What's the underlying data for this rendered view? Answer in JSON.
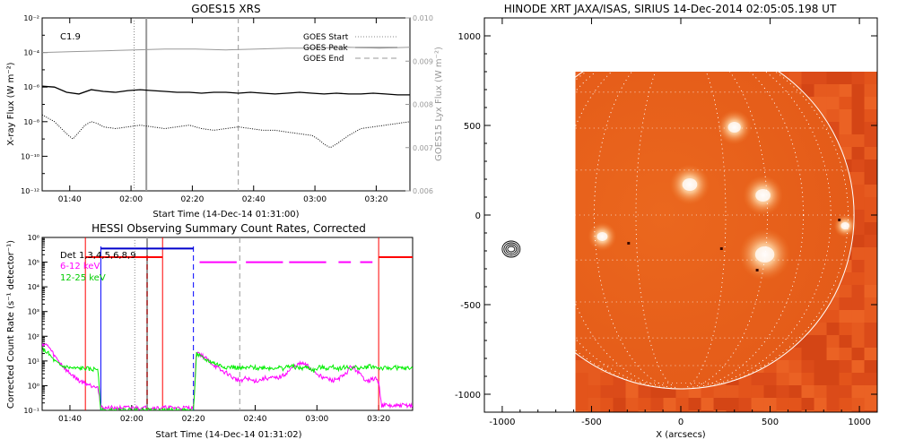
{
  "chart_data": [
    {
      "type": "line",
      "title": "GOES15 XRS",
      "xlabel": "Start Time (14-Dec-14 01:31:00)",
      "ylabel_left": "X-ray Flux (W m⁻²)",
      "ylabel_right": "GOES15 Lyx Flux (W m⁻²)",
      "annotation": "C1.9",
      "x_ticks": [
        "01:40",
        "02:00",
        "02:20",
        "02:40",
        "03:00",
        "03:20"
      ],
      "y_ticks_left": [
        "10⁻¹²",
        "10⁻¹⁰",
        "10⁻⁸",
        "10⁻⁶",
        "10⁻⁴",
        "10⁻²"
      ],
      "y_ticks_right": [
        "0.006",
        "0.007",
        "0.008",
        "0.009",
        "0.010"
      ],
      "legend": [
        "GOES Start",
        "GOES Peak",
        "GOES End"
      ],
      "legend_placement": "top-right",
      "xlim_minutes": [
        0,
        120
      ],
      "ylim_log10": [
        -12,
        -2
      ],
      "markers_minutes": {
        "start": 30,
        "peak": 34,
        "end": 64
      },
      "series": [
        {
          "name": "",
          "style": "solid",
          "x": [
            0,
            4,
            8,
            12,
            16,
            20,
            24,
            28,
            32,
            36,
            40,
            44,
            48,
            52,
            56,
            60,
            64,
            68,
            72,
            76,
            80,
            84,
            88,
            92,
            96,
            100,
            104,
            108,
            112,
            116,
            120
          ],
          "log10": [
            -5.95,
            -6.0,
            -6.3,
            -6.4,
            -6.15,
            -6.25,
            -6.3,
            -6.2,
            -6.15,
            -6.2,
            -6.25,
            -6.3,
            -6.3,
            -6.35,
            -6.3,
            -6.3,
            -6.35,
            -6.3,
            -6.35,
            -6.4,
            -6.35,
            -6.3,
            -6.35,
            -6.4,
            -6.35,
            -6.4,
            -6.4,
            -6.35,
            -6.4,
            -6.45,
            -6.45
          ]
        },
        {
          "name": "",
          "style": "dotted",
          "x": [
            0,
            4,
            8,
            10,
            12,
            14,
            16,
            18,
            20,
            24,
            28,
            32,
            36,
            40,
            44,
            48,
            52,
            56,
            60,
            64,
            68,
            72,
            76,
            80,
            84,
            88,
            90,
            92,
            94,
            96,
            100,
            104,
            108,
            112,
            116,
            120
          ],
          "log10": [
            -7.6,
            -8.0,
            -8.7,
            -9.0,
            -8.6,
            -8.2,
            -8.0,
            -8.1,
            -8.3,
            -8.4,
            -8.3,
            -8.2,
            -8.3,
            -8.4,
            -8.3,
            -8.2,
            -8.4,
            -8.5,
            -8.4,
            -8.3,
            -8.4,
            -8.5,
            -8.5,
            -8.6,
            -8.7,
            -8.8,
            -9.0,
            -9.3,
            -9.5,
            -9.3,
            -8.8,
            -8.4,
            -8.3,
            -8.2,
            -8.1,
            -8.0
          ]
        },
        {
          "name": "",
          "style": "gray",
          "x": [
            0,
            10,
            20,
            30,
            40,
            50,
            60,
            70,
            80,
            90,
            100,
            110,
            120
          ],
          "log10": [
            -4.0,
            -3.95,
            -3.9,
            -3.85,
            -3.8,
            -3.8,
            -3.85,
            -3.8,
            -3.75,
            -3.75,
            -3.7,
            -3.75,
            -3.7
          ]
        }
      ]
    },
    {
      "type": "line",
      "title": "HESSI Observing Summary Count Rates, Corrected",
      "xlabel": "Start Time (14-Dec-14 01:31:02)",
      "ylabel": "Corrected Count Rate (s⁻¹ detector⁻¹)",
      "x_ticks": [
        "01:40",
        "02:00",
        "02:20",
        "02:40",
        "03:00",
        "03:20"
      ],
      "y_ticks": [
        "10⁻¹",
        "10⁰",
        "10¹",
        "10²",
        "10³",
        "10⁴",
        "10⁵",
        "10⁶"
      ],
      "xlim_minutes": [
        0,
        120
      ],
      "ylim_log10": [
        -1,
        6
      ],
      "det_label": "Det 1,3,4,5,6,8,9",
      "legend_placement": "top-left",
      "legend": [
        {
          "name": "6-12 keV",
          "color": "#ff00ff"
        },
        {
          "name": "12-25 keV",
          "color": "#00ee00"
        }
      ],
      "red_markers_minutes": [
        14,
        39,
        109
      ],
      "blue_markers_minutes": [
        19,
        49
      ],
      "series": [
        {
          "name": "6-12 keV",
          "color": "#ff00ff",
          "x": [
            0,
            2,
            4,
            6,
            8,
            10,
            12,
            14,
            16,
            18,
            19,
            49,
            50,
            52,
            54,
            56,
            58,
            60,
            62,
            64,
            66,
            68,
            70,
            72,
            74,
            76,
            78,
            80,
            82,
            84,
            86,
            88,
            90,
            92,
            94,
            96,
            98,
            100,
            102,
            104,
            106,
            108,
            109,
            110,
            112,
            114,
            116,
            118,
            120
          ],
          "log10": [
            1.7,
            1.6,
            1.2,
            0.9,
            0.6,
            0.4,
            0.2,
            0.1,
            0.0,
            0.0,
            -0.9,
            -0.9,
            1.4,
            1.2,
            1.0,
            0.8,
            0.6,
            0.5,
            0.3,
            0.2,
            0.3,
            0.2,
            0.2,
            0.3,
            0.3,
            0.3,
            0.4,
            0.6,
            0.8,
            0.9,
            0.8,
            0.6,
            0.4,
            0.3,
            0.2,
            0.3,
            0.4,
            0.8,
            0.6,
            0.3,
            0.2,
            0.3,
            0.1,
            -0.8,
            -0.8,
            -0.85,
            -0.8,
            -0.8,
            -0.8
          ]
        },
        {
          "name": "12-25 keV",
          "color": "#00ee00",
          "x": [
            0,
            2,
            4,
            6,
            8,
            10,
            12,
            14,
            16,
            18,
            19,
            49,
            50,
            52,
            54,
            56,
            58,
            60,
            62,
            64,
            66,
            68,
            70,
            72,
            74,
            76,
            78,
            80,
            82,
            84,
            86,
            88,
            90,
            92,
            94,
            96,
            98,
            100,
            102,
            104,
            106,
            108,
            110,
            112,
            114,
            116,
            118,
            120
          ],
          "log10": [
            1.5,
            1.3,
            1.0,
            0.8,
            0.75,
            0.7,
            0.7,
            0.7,
            0.65,
            0.7,
            -1.0,
            -1.0,
            1.3,
            1.1,
            1.0,
            0.9,
            0.8,
            0.75,
            0.75,
            0.7,
            0.7,
            0.75,
            0.7,
            0.75,
            0.7,
            0.75,
            0.7,
            0.8,
            0.75,
            0.7,
            0.75,
            0.6,
            0.75,
            0.7,
            0.75,
            0.7,
            0.75,
            0.7,
            0.75,
            0.7,
            0.8,
            0.75,
            0.7,
            0.7,
            0.75,
            0.7,
            0.7,
            0.7
          ]
        }
      ],
      "bands": [
        {
          "color": "#ff0000",
          "y_log10": 5.2,
          "segments": [
            [
              14,
              39
            ],
            [
              109,
              120
            ]
          ]
        },
        {
          "color": "#0000cc",
          "y_log10": 5.55,
          "segments": [
            [
              19,
              49
            ]
          ]
        },
        {
          "color": "#ff00ff",
          "y_log10": 5.0,
          "segments": [
            [
              51,
              63
            ],
            [
              66,
              78
            ],
            [
              80,
              92
            ],
            [
              96,
              100
            ],
            [
              103,
              107
            ]
          ]
        }
      ]
    },
    {
      "type": "heatmap",
      "title": "HINODE XRT JAXA/ISAS, SIRIUS 14-Dec-2014 02:05:05.198 UT",
      "xlabel": "X (arcsecs)",
      "ylabel": "",
      "x_ticks": [
        -1000,
        -500,
        0,
        500,
        1000
      ],
      "y_ticks": [
        -1000,
        -500,
        0,
        500,
        1000
      ],
      "xlim": [
        -1100,
        1100
      ],
      "ylim": [
        -1100,
        1100
      ],
      "image_extent": {
        "x": [
          -590,
          1100
        ],
        "y": [
          -1100,
          800
        ]
      },
      "limb_radius": 970,
      "grid_spacing_deg": 15,
      "bright_regions": [
        {
          "x": 50,
          "y": 170,
          "r": 70
        },
        {
          "x": 460,
          "y": 110,
          "r": 70
        },
        {
          "x": 470,
          "y": -220,
          "r": 90
        },
        {
          "x": -440,
          "y": -120,
          "r": 50
        },
        {
          "x": 920,
          "y": -60,
          "r": 40
        },
        {
          "x": 300,
          "y": 490,
          "r": 60
        }
      ],
      "contour_center": {
        "x": -950,
        "y": -190
      }
    }
  ]
}
